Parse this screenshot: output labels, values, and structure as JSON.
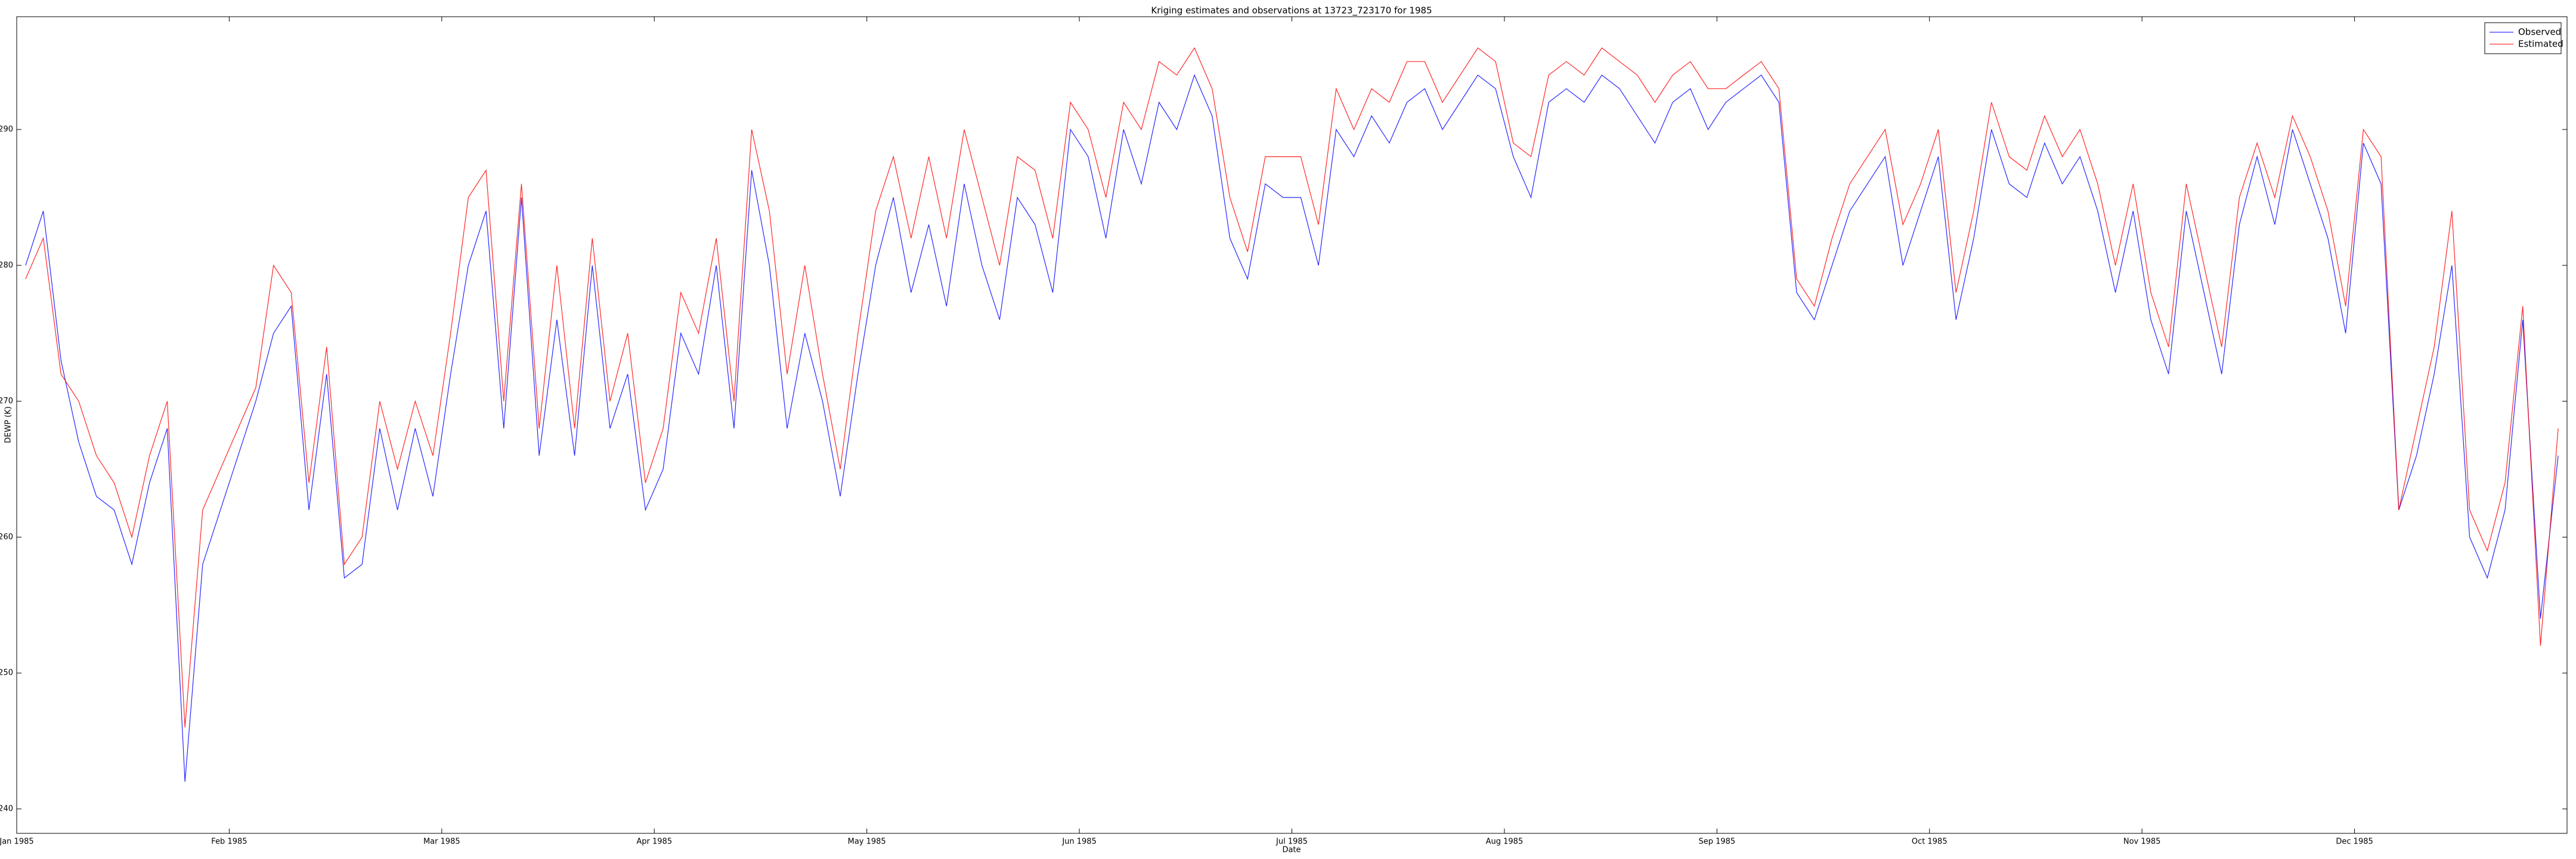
{
  "chart_data": {
    "type": "line",
    "title": "Kriging estimates and observations at 13723_723170 for 1985",
    "xlabel": "Date",
    "ylabel": "DEWP (K)",
    "categories": [
      "Jan 1985",
      null,
      null,
      null,
      null,
      null,
      null,
      null,
      null,
      null,
      null,
      null,
      "Feb 1985",
      null,
      null,
      null,
      null,
      null,
      null,
      null,
      null,
      null,
      null,
      null,
      "Mar 1985",
      null,
      null,
      null,
      null,
      null,
      null,
      null,
      null,
      null,
      null,
      null,
      "Apr 1985",
      null,
      null,
      null,
      null,
      null,
      null,
      null,
      null,
      null,
      null,
      null,
      "May 1985",
      null,
      null,
      null,
      null,
      null,
      null,
      null,
      null,
      null,
      null,
      null,
      "Jun 1985",
      null,
      null,
      null,
      null,
      null,
      null,
      null,
      null,
      null,
      null,
      null,
      "Jul 1985",
      null,
      null,
      null,
      null,
      null,
      null,
      null,
      null,
      null,
      null,
      null,
      "Aug 1985",
      null,
      null,
      null,
      null,
      null,
      null,
      null,
      null,
      null,
      null,
      null,
      "Sep 1985",
      null,
      null,
      null,
      null,
      null,
      null,
      null,
      null,
      null,
      null,
      null,
      "Oct 1985",
      null,
      null,
      null,
      null,
      null,
      null,
      null,
      null,
      null,
      null,
      null,
      "Nov 1985",
      null,
      null,
      null,
      null,
      null,
      null,
      null,
      null,
      null,
      null,
      null,
      "Dec 1985",
      null,
      null,
      null,
      null,
      null,
      null,
      null,
      null,
      null,
      null,
      null
    ],
    "series": [
      {
        "name": "Observed",
        "color": "#0000ff",
        "values": [
          280,
          284,
          273,
          267,
          263,
          262,
          258,
          264,
          268,
          242,
          258,
          262,
          266,
          270,
          275,
          277,
          262,
          272,
          257,
          258,
          268,
          262,
          268,
          263,
          272,
          280,
          284,
          268,
          285,
          266,
          276,
          266,
          280,
          268,
          272,
          262,
          265,
          275,
          272,
          280,
          268,
          287,
          280,
          268,
          275,
          270,
          263,
          272,
          280,
          285,
          278,
          283,
          277,
          286,
          280,
          276,
          285,
          283,
          278,
          290,
          288,
          282,
          290,
          286,
          292,
          290,
          294,
          291,
          282,
          279,
          286,
          285,
          285,
          280,
          290,
          288,
          291,
          289,
          292,
          293,
          290,
          292,
          294,
          293,
          288,
          285,
          292,
          293,
          292,
          294,
          293,
          291,
          289,
          292,
          293,
          290,
          292,
          293,
          294,
          292,
          278,
          276,
          280,
          284,
          286,
          288,
          280,
          284,
          288,
          276,
          282,
          290,
          286,
          285,
          289,
          286,
          288,
          284,
          278,
          284,
          276,
          272,
          284,
          278,
          272,
          283,
          288,
          283,
          290,
          286,
          282,
          275,
          289,
          286,
          262,
          266,
          272,
          280,
          260,
          257,
          262,
          276,
          254,
          266
        ]
      },
      {
        "name": "Estimated",
        "color": "#ff0000",
        "values": [
          279,
          282,
          272,
          270,
          266,
          264,
          260,
          266,
          270,
          246,
          262,
          265,
          268,
          271,
          280,
          278,
          264,
          274,
          258,
          260,
          270,
          265,
          270,
          266,
          275,
          285,
          287,
          270,
          286,
          268,
          280,
          268,
          282,
          270,
          275,
          264,
          268,
          278,
          275,
          282,
          270,
          290,
          284,
          272,
          280,
          272,
          265,
          275,
          284,
          288,
          282,
          288,
          282,
          290,
          285,
          280,
          288,
          287,
          282,
          292,
          290,
          285,
          292,
          290,
          295,
          294,
          296,
          293,
          285,
          281,
          288,
          288,
          288,
          283,
          293,
          290,
          293,
          292,
          295,
          295,
          292,
          294,
          296,
          295,
          289,
          288,
          294,
          295,
          294,
          296,
          295,
          294,
          292,
          294,
          295,
          293,
          293,
          294,
          295,
          293,
          279,
          277,
          282,
          286,
          288,
          290,
          283,
          286,
          290,
          278,
          284,
          292,
          288,
          287,
          291,
          288,
          290,
          286,
          280,
          286,
          278,
          274,
          286,
          280,
          274,
          285,
          289,
          285,
          291,
          288,
          284,
          277,
          290,
          288,
          262,
          268,
          274,
          284,
          262,
          259,
          264,
          277,
          252,
          268
        ]
      }
    ],
    "ylim": [
      238.2,
      298.3
    ],
    "yticks": [
      240,
      250,
      260,
      270,
      280,
      290
    ],
    "legend": "upper right",
    "grid": false
  }
}
